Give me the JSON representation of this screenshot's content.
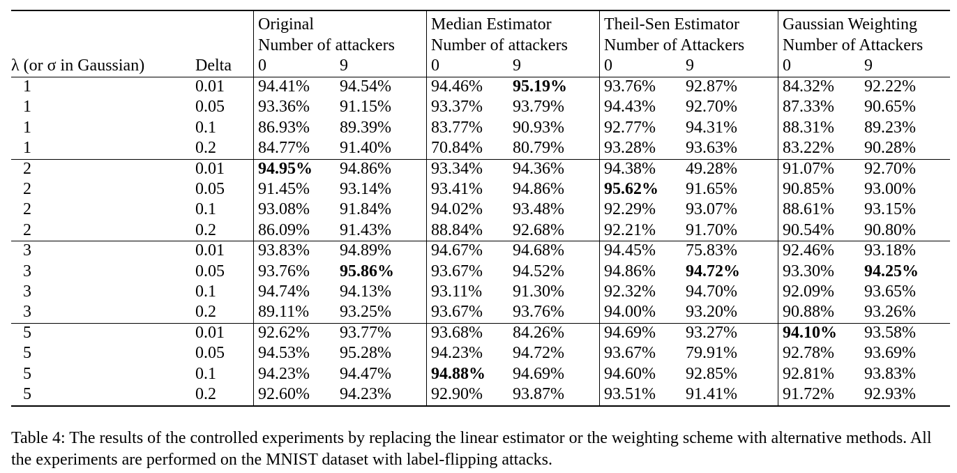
{
  "groups": [
    "Original",
    "Median Estimator",
    "Theil-Sen Estimator",
    "Gaussian Weighting"
  ],
  "subheaders": [
    "Number of attackers",
    "Number of attackers",
    "Number of Attackers",
    "Number of Attackers"
  ],
  "header": {
    "lambda": "λ (or σ in Gaussian)",
    "delta": "Delta",
    "k0": "0",
    "k9": "9"
  },
  "rows": [
    {
      "lambda": "1",
      "delta": "0.01",
      "values": [
        "94.41%",
        "94.54%",
        "94.46%",
        "95.19%",
        "93.76%",
        "92.87%",
        "84.32%",
        "92.22%"
      ]
    },
    {
      "lambda": "1",
      "delta": "0.05",
      "values": [
        "93.36%",
        "91.15%",
        "93.37%",
        "93.79%",
        "94.43%",
        "92.70%",
        "87.33%",
        "90.65%"
      ]
    },
    {
      "lambda": "1",
      "delta": "0.1",
      "values": [
        "86.93%",
        "89.39%",
        "83.77%",
        "90.93%",
        "92.77%",
        "94.31%",
        "88.31%",
        "89.23%"
      ]
    },
    {
      "lambda": "1",
      "delta": "0.2",
      "values": [
        "84.77%",
        "91.40%",
        "70.84%",
        "80.79%",
        "93.28%",
        "93.63%",
        "83.22%",
        "90.28%"
      ]
    },
    {
      "lambda": "2",
      "delta": "0.01",
      "values": [
        "94.95%",
        "94.86%",
        "93.34%",
        "94.36%",
        "94.38%",
        "49.28%",
        "91.07%",
        "92.70%"
      ]
    },
    {
      "lambda": "2",
      "delta": "0.05",
      "values": [
        "91.45%",
        "93.14%",
        "93.41%",
        "94.86%",
        "95.62%",
        "91.65%",
        "90.85%",
        "93.00%"
      ]
    },
    {
      "lambda": "2",
      "delta": "0.1",
      "values": [
        "93.08%",
        "91.84%",
        "94.02%",
        "93.48%",
        "92.29%",
        "93.07%",
        "88.61%",
        "93.15%"
      ]
    },
    {
      "lambda": "2",
      "delta": "0.2",
      "values": [
        "86.09%",
        "91.43%",
        "88.84%",
        "92.68%",
        "92.21%",
        "91.70%",
        "90.54%",
        "90.80%"
      ]
    },
    {
      "lambda": "3",
      "delta": "0.01",
      "values": [
        "93.83%",
        "94.89%",
        "94.67%",
        "94.68%",
        "94.45%",
        "75.83%",
        "92.46%",
        "93.18%"
      ]
    },
    {
      "lambda": "3",
      "delta": "0.05",
      "values": [
        "93.76%",
        "95.86%",
        "93.67%",
        "94.52%",
        "94.86%",
        "94.72%",
        "93.30%",
        "94.25%"
      ]
    },
    {
      "lambda": "3",
      "delta": "0.1",
      "values": [
        "94.74%",
        "94.13%",
        "93.11%",
        "91.30%",
        "92.32%",
        "94.70%",
        "92.09%",
        "93.65%"
      ]
    },
    {
      "lambda": "3",
      "delta": "0.2",
      "values": [
        "89.11%",
        "93.25%",
        "93.67%",
        "93.76%",
        "94.00%",
        "93.20%",
        "90.88%",
        "93.26%"
      ]
    },
    {
      "lambda": "5",
      "delta": "0.01",
      "values": [
        "92.62%",
        "93.77%",
        "93.68%",
        "84.26%",
        "94.69%",
        "93.27%",
        "94.10%",
        "93.58%"
      ]
    },
    {
      "lambda": "5",
      "delta": "0.05",
      "values": [
        "94.53%",
        "95.28%",
        "94.23%",
        "94.72%",
        "93.67%",
        "79.91%",
        "92.78%",
        "93.69%"
      ]
    },
    {
      "lambda": "5",
      "delta": "0.1",
      "values": [
        "94.23%",
        "94.47%",
        "94.88%",
        "94.69%",
        "94.60%",
        "92.85%",
        "92.81%",
        "93.83%"
      ]
    },
    {
      "lambda": "5",
      "delta": "0.2",
      "values": [
        "92.60%",
        "94.23%",
        "92.90%",
        "93.87%",
        "93.51%",
        "91.41%",
        "91.72%",
        "92.93%"
      ]
    }
  ],
  "bold_cells": [
    [
      0,
      3
    ],
    [
      4,
      0
    ],
    [
      5,
      4
    ],
    [
      9,
      1
    ],
    [
      9,
      5
    ],
    [
      9,
      7
    ],
    [
      12,
      6
    ],
    [
      14,
      2
    ]
  ],
  "caption": "Table 4: The results of the controlled experiments by replacing the linear estimator or the weighting scheme with alternative methods. All the experiments are performed on the MNIST dataset with label-flipping attacks."
}
